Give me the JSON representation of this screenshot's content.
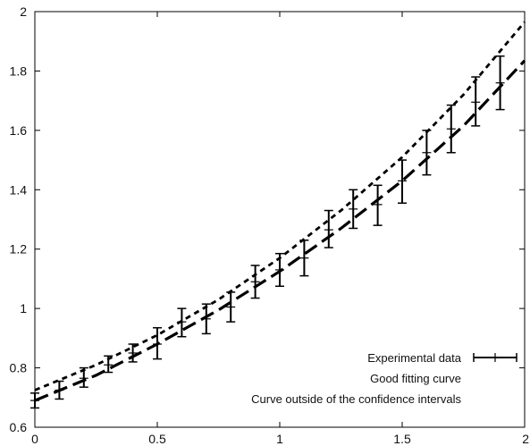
{
  "chart_data": {
    "type": "line",
    "title": "",
    "xlabel": "",
    "ylabel": "",
    "xlim": [
      0,
      2
    ],
    "ylim": [
      0.6,
      2
    ],
    "x_ticks": [
      "0",
      "0.5",
      "1",
      "1.5",
      "2"
    ],
    "y_ticks": [
      "0.6",
      "0.8",
      "1",
      "1.2",
      "1.4",
      "1.6",
      "1.8",
      "2"
    ],
    "grid": false,
    "legend_position": "bottom-right",
    "series": [
      {
        "name": "Experimental data",
        "style": "errorbars",
        "color": "#000000",
        "x": [
          0.0,
          0.1,
          0.2,
          0.3,
          0.4,
          0.5,
          0.6,
          0.7,
          0.8,
          0.9,
          1.0,
          1.1,
          1.2,
          1.3,
          1.4,
          1.5,
          1.6,
          1.7,
          1.8,
          1.9
        ],
        "y": [
          0.69,
          0.725,
          0.765,
          0.81,
          0.85,
          0.88,
          0.955,
          0.965,
          1.005,
          1.09,
          1.13,
          1.17,
          1.265,
          1.335,
          1.35,
          1.43,
          1.525,
          1.605,
          1.695,
          1.76
        ],
        "y_low": [
          0.665,
          0.695,
          0.735,
          0.785,
          0.82,
          0.83,
          0.905,
          0.915,
          0.955,
          1.035,
          1.075,
          1.11,
          1.205,
          1.27,
          1.28,
          1.355,
          1.45,
          1.525,
          1.615,
          1.67
        ],
        "y_high": [
          0.715,
          0.755,
          0.8,
          0.84,
          0.88,
          0.935,
          1.0,
          1.015,
          1.055,
          1.145,
          1.185,
          1.23,
          1.33,
          1.4,
          1.415,
          1.5,
          1.6,
          1.685,
          1.78,
          1.85
        ]
      },
      {
        "name": "Good fitting curve",
        "style": "long-dash",
        "color": "#000000",
        "x": [
          0,
          0.25,
          0.5,
          0.75,
          1.0,
          1.25,
          1.5,
          1.75,
          2.0
        ],
        "y": [
          0.69,
          0.775,
          0.88,
          0.995,
          1.125,
          1.27,
          1.43,
          1.615,
          1.835
        ]
      },
      {
        "name": "Curve outside of the confidence intervals",
        "style": "short-dash",
        "color": "#000000",
        "x": [
          0,
          0.25,
          0.5,
          0.75,
          1.0,
          1.25,
          1.5,
          1.75,
          2.0
        ],
        "y": [
          0.725,
          0.81,
          0.91,
          1.03,
          1.17,
          1.33,
          1.51,
          1.72,
          1.965
        ]
      }
    ]
  }
}
